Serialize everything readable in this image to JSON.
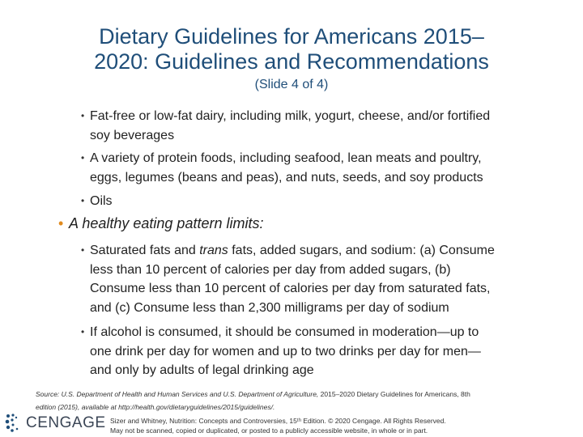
{
  "slide": {
    "title_line1": "Dietary Guidelines for Americans 2015–",
    "title_line2": "2020: Guidelines and Recommendations",
    "subtitle": "(Slide 4 of 4)"
  },
  "bullets": {
    "dairy_line1": "Fat-free or low-fat dairy, including milk, yogurt, cheese, and/or fortified",
    "dairy_line2": "soy beverages",
    "protein_line1": "A variety of protein foods, including seafood, lean meats and poultry,",
    "protein_line2": "eggs, legumes (beans and peas), and nuts, seeds, and soy products",
    "oils": "Oils",
    "limits_heading": "A healthy eating pattern limits:",
    "sat_line1_a": "Saturated fats and ",
    "sat_line1_italic": "trans",
    "sat_line1_b": " fats, added sugars, and sodium: (a) Consume",
    "sat_line2": "less than 10 percent of calories per day from added sugars, (b)",
    "sat_line3": "Consume less than 10 percent of calories per day from saturated fats,",
    "sat_line4": "and (c) Consume less than 2,300 milligrams per day of sodium",
    "alcohol_line1": "If alcohol is consumed, it should be consumed in moderation—up to",
    "alcohol_line2": "one drink per day for women and up to two drinks per day for men—",
    "alcohol_line3": "and only by adults of legal drinking age"
  },
  "source": {
    "line1_a": "Source: U.S. Department of Health and Human Services and U.S. Department of Agriculture,",
    "line1_b": " 2015–2020 Dietary Guidelines for Americans, 8th",
    "line2": "edition (2015), available at http://health.gov/dietaryguidelines/2015/guidelines/."
  },
  "branding": {
    "logo_text": "CENGAGE",
    "logo_color": "#1f4e79"
  },
  "footer": {
    "line1": "Sizer and Whitney, Nutrition: Concepts and Controversies, 15ᵗʰ Edition. © 2020 Cengage. All Rights Reserved.",
    "line2": "May not be scanned, copied or duplicated, or posted to a publicly accessible website, in whole or in part."
  },
  "colors": {
    "title": "#1f4e79",
    "bullet_accent": "#e08a1e"
  }
}
